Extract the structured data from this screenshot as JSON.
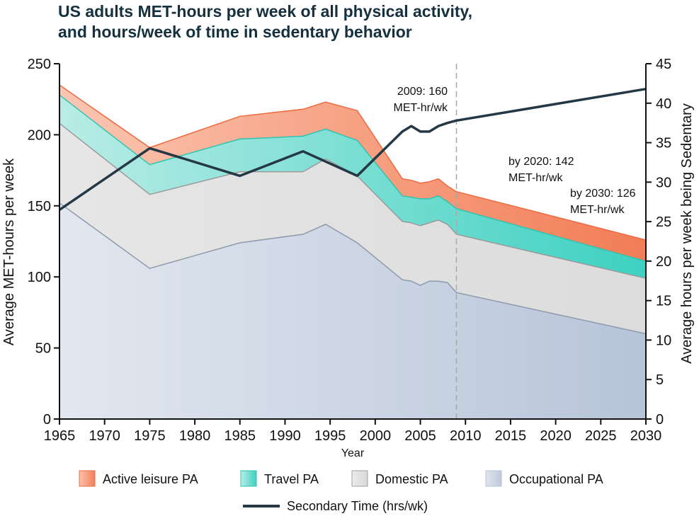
{
  "title_line1": "US adults MET-hours per week of all physical activity,",
  "title_line2": "and hours/week of time in sedentary behavior",
  "chart_data": {
    "type": "area",
    "title": "US adults MET-hours per week of all physical activity, and hours/week of time in sedentary behavior",
    "xlabel": "Year",
    "ylabel": "Average MET-hours per week",
    "y2label": "Average hours per week being Sedentary",
    "xlim": [
      1965,
      2030
    ],
    "ylim": [
      0,
      250
    ],
    "y2lim": [
      0,
      45
    ],
    "xticks": [
      "1965",
      "1970",
      "1975",
      "1980",
      "1985",
      "1990",
      "1995",
      "2000",
      "2005",
      "2010",
      "2015",
      "2020",
      "2025",
      "2030"
    ],
    "yticks": [
      "0",
      "50",
      "100",
      "150",
      "200",
      "250"
    ],
    "y2ticks": [
      "0",
      "5",
      "10",
      "15",
      "20",
      "25",
      "30",
      "35",
      "40",
      "45"
    ],
    "stacked": true,
    "x": [
      1965,
      1975,
      1985,
      1992,
      1994.5,
      1998,
      2003,
      2004,
      2005,
      2006,
      2007,
      2008,
      2009,
      2030
    ],
    "series": [
      {
        "name": "Occupational PA",
        "color": "#c5d0e0",
        "values": [
          152,
          106,
          124,
          130,
          137,
          124,
          98,
          97,
          94,
          97,
          97,
          96,
          89,
          60
        ]
      },
      {
        "name": "Domestic PA",
        "color": "#e0e0e0",
        "values": [
          56,
          52,
          50,
          44,
          46,
          47,
          41,
          41,
          42,
          41,
          43,
          41,
          41,
          39
        ]
      },
      {
        "name": "Travel PA",
        "color": "#50d6c8",
        "values": [
          20,
          21,
          23,
          25,
          21,
          25,
          18,
          18,
          19,
          17,
          17,
          16,
          18,
          12
        ]
      },
      {
        "name": "Active leisure PA",
        "color": "#f4a48a",
        "values": [
          7,
          12,
          16,
          19,
          19,
          21,
          12,
          12,
          11,
          12,
          12,
          11,
          12,
          15
        ]
      }
    ],
    "secondary_series": {
      "name": "Secondary Time (hrs/wk)",
      "color": "#253846",
      "x": [
        1965,
        1975,
        1985,
        1992,
        1998,
        2003,
        2004,
        2005,
        2006,
        2007,
        2008,
        2009,
        2030
      ],
      "values": [
        26.5,
        34.3,
        30.8,
        33.9,
        30.8,
        36.4,
        37.1,
        36.4,
        36.4,
        37.1,
        37.5,
        37.8,
        41.8
      ]
    },
    "reference_line": {
      "x": 2009
    },
    "annotations": [
      {
        "line1": "2009: 160",
        "line2": "MET-hr/wk"
      },
      {
        "line1": "by 2020: 142",
        "line2": "MET-hr/wk"
      },
      {
        "line1": "by 2030: 126",
        "line2": "MET-hr/wk"
      }
    ],
    "legend_position": "bottom",
    "grid": false
  }
}
